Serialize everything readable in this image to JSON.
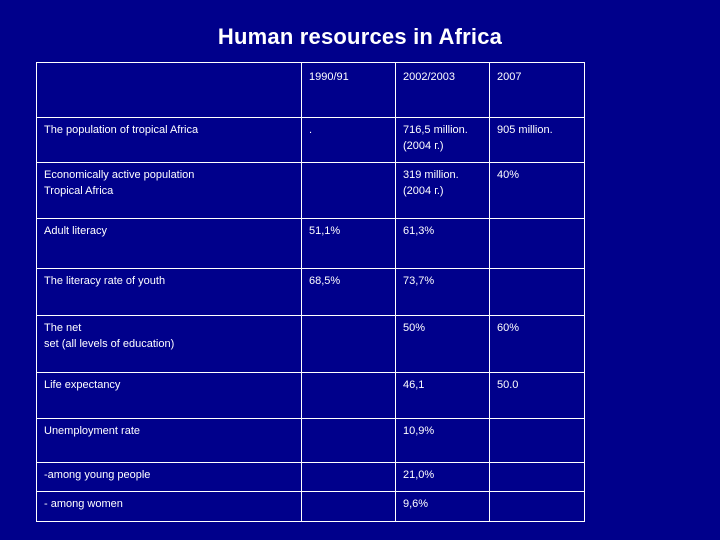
{
  "title": "Human resources in Africa",
  "table": {
    "columns": [
      "",
      "1990/91",
      "2002/2003",
      "2007"
    ],
    "rows": [
      {
        "label": "The population of tropical Africa",
        "v1990": ".",
        "v2002": "716,5 million.\n(2004 г.)",
        "v2007": "905 million."
      },
      {
        "label": "Economically active population\nTropical Africa",
        "v1990": "",
        "v2002": "319 million.\n(2004 г.)",
        "v2007": "40%"
      },
      {
        "label": "Adult literacy",
        "v1990": "51,1%",
        "v2002": "61,3%",
        "v2007": ""
      },
      {
        "label": "The literacy rate of youth",
        "v1990": "68,5%",
        "v2002": "73,7%",
        "v2007": ""
      },
      {
        "label": "The net\nset (all levels of education)",
        "v1990": "",
        "v2002": "50%",
        "v2007": "60%"
      },
      {
        "label": "Life expectancy",
        "v1990": "",
        "v2002": "46,1",
        "v2007": "50.0"
      },
      {
        "label": "Unemployment rate",
        "v1990": "",
        "v2002": "10,9%",
        "v2007": ""
      },
      {
        "label": "-among young people",
        "v1990": "",
        "v2002": "21,0%",
        "v2007": ""
      },
      {
        "label": "- among women",
        "v1990": "",
        "v2002": "9,6%",
        "v2007": ""
      }
    ]
  },
  "colors": {
    "background": "#00008b",
    "text": "#ffffff",
    "highlight": "#ff1a1a"
  }
}
